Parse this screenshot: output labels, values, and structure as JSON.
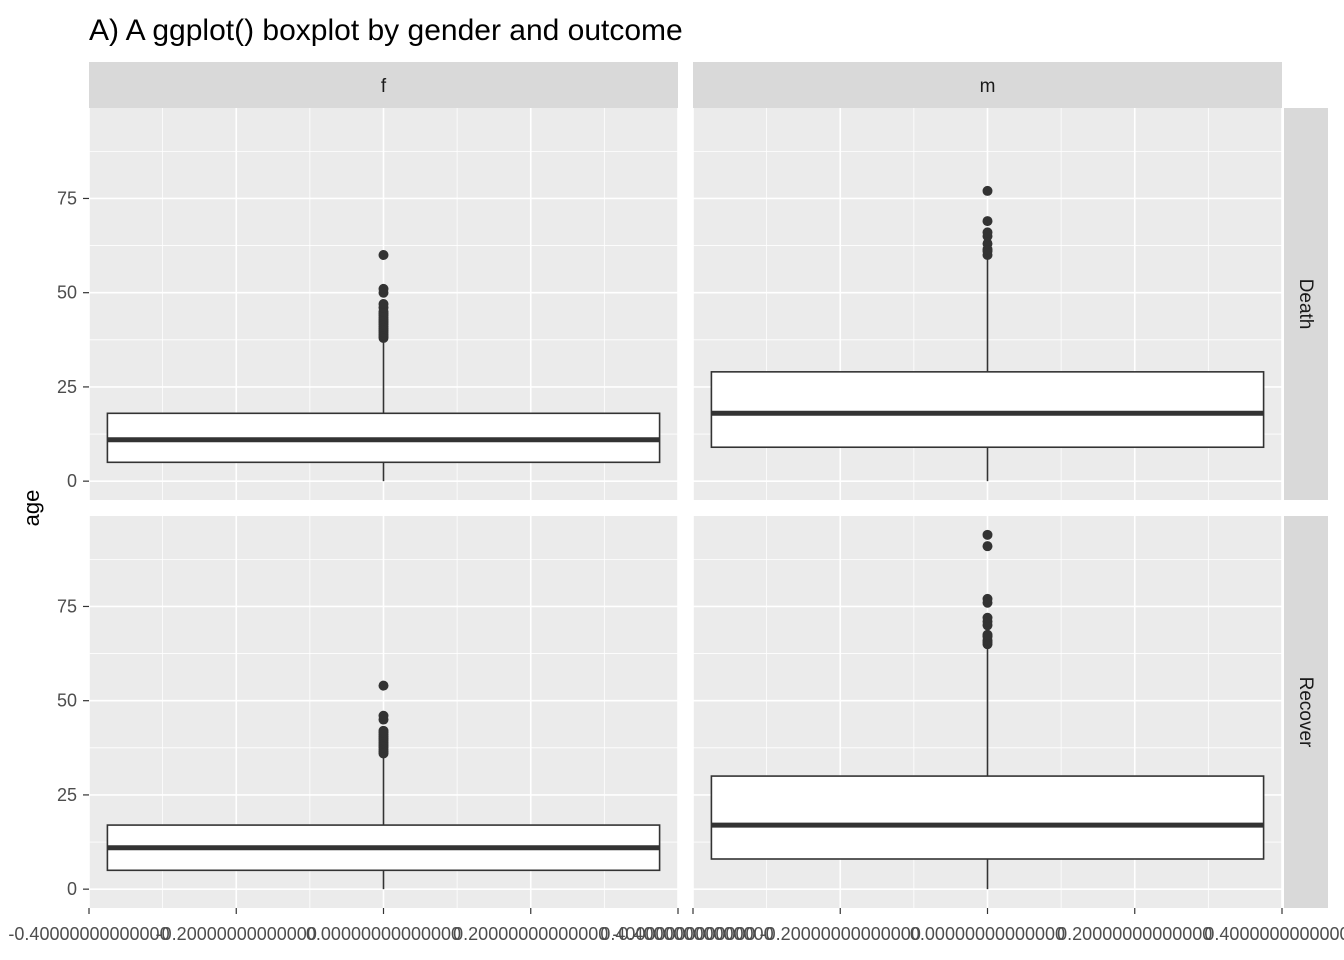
{
  "chart_data": {
    "type": "boxplot",
    "title": "A) A ggplot() boxplot by gender and outcome",
    "xlabel": "",
    "ylabel": "age",
    "ylim": [
      -5,
      99
    ],
    "xlim": [
      -0.4,
      0.4
    ],
    "y_ticks": [
      0,
      25,
      50,
      75
    ],
    "x_tick_labels": [
      "-0.40000000000000",
      "-0.20000000000000",
      "0.00000000000000",
      "0.20000000000000",
      "0.40000000000000"
    ],
    "x_tick_values": [
      -0.4,
      -0.2,
      0.0,
      0.2,
      0.4
    ],
    "facet_cols": [
      "f",
      "m"
    ],
    "facet_rows": [
      "Death",
      "Recover"
    ],
    "colors": {
      "panel_bg": "#ebebeb",
      "strip_bg": "#d9d9d9",
      "grid": "#ffffff",
      "box_fill": "#ffffff",
      "box_line": "#333333"
    },
    "panels": [
      {
        "col": "f",
        "row": "Death",
        "q1": 5,
        "median": 11,
        "q3": 18,
        "whisker_low": 0,
        "whisker_high": 37.5,
        "outliers": [
          38,
          38.5,
          39,
          39.5,
          40,
          40.5,
          41,
          41.5,
          42,
          42.5,
          43,
          43.5,
          44,
          44.5,
          45,
          46,
          47,
          50,
          51,
          60
        ]
      },
      {
        "col": "m",
        "row": "Death",
        "q1": 9,
        "median": 18,
        "q3": 29,
        "whisker_low": 0,
        "whisker_high": 59.5,
        "outliers": [
          60,
          61,
          61.5,
          63,
          65,
          66,
          69,
          77
        ]
      },
      {
        "col": "f",
        "row": "Recover",
        "q1": 5,
        "median": 11,
        "q3": 17,
        "whisker_low": 0,
        "whisker_high": 35.5,
        "outliers": [
          36,
          36.5,
          37,
          37.5,
          38,
          38.5,
          39,
          39.5,
          40,
          40.5,
          41,
          41.5,
          42,
          45,
          46,
          54
        ]
      },
      {
        "col": "m",
        "row": "Recover",
        "q1": 8,
        "median": 17,
        "q3": 30,
        "whisker_low": 0,
        "whisker_high": 64.5,
        "outliers": [
          65,
          65.5,
          66,
          67,
          67.5,
          70,
          71,
          72,
          76,
          77,
          91,
          94
        ]
      }
    ]
  }
}
